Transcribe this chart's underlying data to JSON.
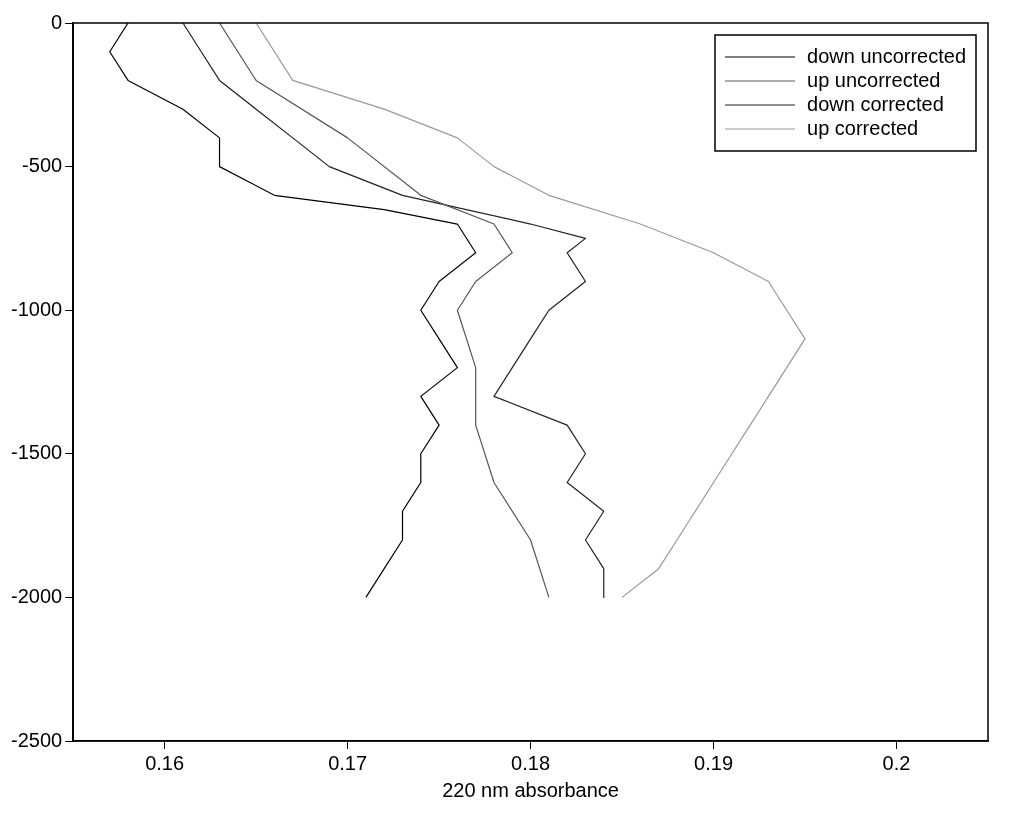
{
  "chart_data": {
    "type": "line",
    "xlabel": "220 nm absorbance",
    "xlim": [
      0.155,
      0.205
    ],
    "xticks": [
      0.16,
      0.17,
      0.18,
      0.19,
      0.2
    ],
    "ylim": [
      -2500,
      0
    ],
    "yticks": [
      0,
      -500,
      -1000,
      -1500,
      -2000,
      -2500
    ],
    "grid": false,
    "legend": "top right",
    "marker": "none",
    "line_style": "solid",
    "series": [
      {
        "name": "down uncorrected",
        "color": "#000000",
        "x": [
          0.158,
          0.157,
          0.158,
          0.161,
          0.163,
          0.163,
          0.166,
          0.172,
          0.176,
          0.177,
          0.175,
          0.174,
          0.175,
          0.176,
          0.174,
          0.175,
          0.174,
          0.174,
          0.173,
          0.173,
          0.172,
          0.171
        ],
        "values": [
          0,
          -100,
          -200,
          -300,
          -400,
          -500,
          -600,
          -650,
          -700,
          -800,
          -900,
          -1000,
          -1100,
          -1200,
          -1300,
          -1400,
          -1500,
          -1600,
          -1700,
          -1800,
          -1900,
          -2000
        ]
      },
      {
        "name": "up uncorrected",
        "color": "#555555",
        "x": [
          0.163,
          0.165,
          0.17,
          0.174,
          0.178,
          0.179,
          0.177,
          0.176,
          0.177,
          0.177,
          0.178,
          0.18,
          0.181
        ],
        "values": [
          0,
          -200,
          -400,
          -600,
          -700,
          -800,
          -900,
          -1000,
          -1200,
          -1400,
          -1600,
          -1800,
          -2000
        ]
      },
      {
        "name": "down corrected",
        "color": "#222222",
        "x": [
          0.161,
          0.162,
          0.163,
          0.165,
          0.167,
          0.169,
          0.173,
          0.18,
          0.183,
          0.182,
          0.183,
          0.181,
          0.18,
          0.179,
          0.178,
          0.182,
          0.183,
          0.182,
          0.184,
          0.183,
          0.184,
          0.184
        ],
        "values": [
          0,
          -100,
          -200,
          -300,
          -400,
          -500,
          -600,
          -700,
          -750,
          -800,
          -900,
          -1000,
          -1100,
          -1200,
          -1300,
          -1400,
          -1500,
          -1600,
          -1700,
          -1800,
          -1900,
          -2000
        ]
      },
      {
        "name": "up corrected",
        "color": "#999999",
        "x": [
          0.165,
          0.167,
          0.172,
          0.176,
          0.178,
          0.181,
          0.186,
          0.19,
          0.193,
          0.194,
          0.195,
          0.194,
          0.193,
          0.192,
          0.191,
          0.19,
          0.189,
          0.188,
          0.187,
          0.185
        ],
        "values": [
          0,
          -200,
          -300,
          -400,
          -500,
          -600,
          -700,
          -800,
          -900,
          -1000,
          -1100,
          -1200,
          -1300,
          -1400,
          -1500,
          -1600,
          -1700,
          -1800,
          -1900,
          -2000
        ]
      }
    ]
  }
}
